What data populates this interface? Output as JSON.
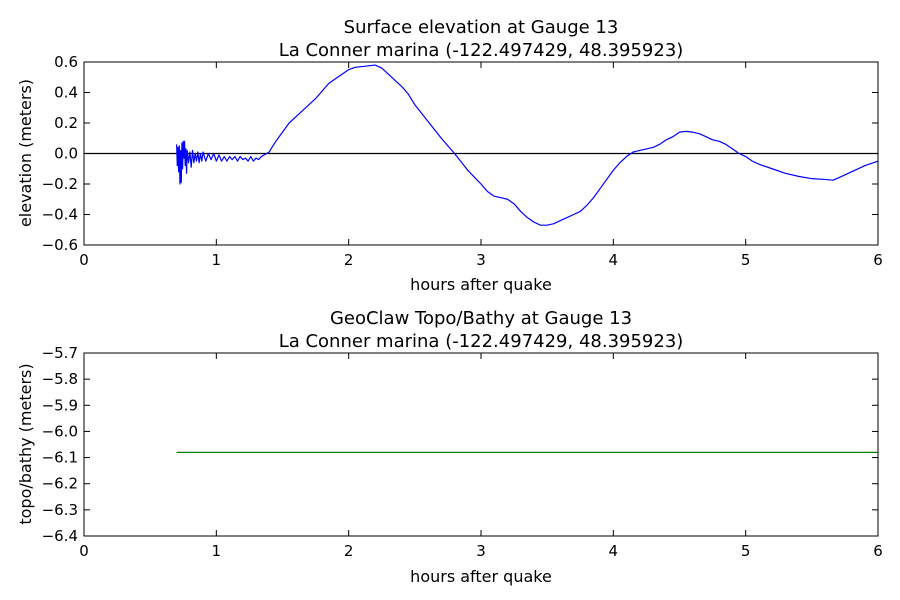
{
  "chart_data": [
    {
      "type": "line",
      "title_line1": "Surface elevation at Gauge 13",
      "title_line2": "La Conner marina  (-122.497429, 48.395923)",
      "xlabel": "hours after quake",
      "ylabel": "elevation (meters)",
      "xlim": [
        0,
        6
      ],
      "ylim": [
        -0.6,
        0.6
      ],
      "xticks": [
        "0",
        "1",
        "2",
        "3",
        "4",
        "5",
        "6"
      ],
      "yticks": [
        "0.6",
        "0.4",
        "0.2",
        "0.0",
        "−0.2",
        "−0.4",
        "−0.6"
      ],
      "reference_line": {
        "y": 0.0,
        "color": "#000000"
      },
      "series": [
        {
          "color": "#0000ff",
          "points": [
            [
              0.7,
              0.06
            ],
            [
              0.705,
              -0.08
            ],
            [
              0.71,
              0.04
            ],
            [
              0.715,
              -0.12
            ],
            [
              0.72,
              0.05
            ],
            [
              0.725,
              -0.2
            ],
            [
              0.73,
              0.02
            ],
            [
              0.735,
              -0.19
            ],
            [
              0.74,
              0.07
            ],
            [
              0.745,
              -0.1
            ],
            [
              0.75,
              0.08
            ],
            [
              0.755,
              -0.03
            ],
            [
              0.76,
              0.08
            ],
            [
              0.765,
              -0.08
            ],
            [
              0.77,
              0.03
            ],
            [
              0.775,
              -0.13
            ],
            [
              0.78,
              0.02
            ],
            [
              0.79,
              -0.06
            ],
            [
              0.8,
              0.01
            ],
            [
              0.81,
              -0.09
            ],
            [
              0.82,
              0.02
            ],
            [
              0.83,
              -0.06
            ],
            [
              0.84,
              0.0
            ],
            [
              0.85,
              -0.05
            ],
            [
              0.86,
              0.01
            ],
            [
              0.87,
              -0.06
            ],
            [
              0.88,
              0.0
            ],
            [
              0.89,
              -0.05
            ],
            [
              0.9,
              0.01
            ],
            [
              0.92,
              -0.05
            ],
            [
              0.94,
              0.0
            ],
            [
              0.96,
              -0.04
            ],
            [
              0.98,
              0.0
            ],
            [
              1.0,
              -0.05
            ],
            [
              1.02,
              -0.01
            ],
            [
              1.04,
              -0.05
            ],
            [
              1.06,
              -0.02
            ],
            [
              1.08,
              -0.05
            ],
            [
              1.1,
              -0.02
            ],
            [
              1.12,
              -0.04
            ],
            [
              1.14,
              -0.02
            ],
            [
              1.16,
              -0.05
            ],
            [
              1.18,
              -0.02
            ],
            [
              1.2,
              -0.04
            ],
            [
              1.22,
              -0.03
            ],
            [
              1.24,
              -0.05
            ],
            [
              1.26,
              -0.02
            ],
            [
              1.28,
              -0.05
            ],
            [
              1.3,
              -0.03
            ],
            [
              1.32,
              -0.04
            ],
            [
              1.34,
              -0.02
            ],
            [
              1.36,
              -0.01
            ],
            [
              1.38,
              0.0
            ],
            [
              1.4,
              0.01
            ],
            [
              1.42,
              0.04
            ],
            [
              1.45,
              0.08
            ],
            [
              1.5,
              0.14
            ],
            [
              1.55,
              0.2
            ],
            [
              1.6,
              0.24
            ],
            [
              1.65,
              0.28
            ],
            [
              1.7,
              0.32
            ],
            [
              1.75,
              0.36
            ],
            [
              1.8,
              0.41
            ],
            [
              1.85,
              0.46
            ],
            [
              1.9,
              0.49
            ],
            [
              1.95,
              0.52
            ],
            [
              2.0,
              0.55
            ],
            [
              2.05,
              0.565
            ],
            [
              2.1,
              0.57
            ],
            [
              2.15,
              0.575
            ],
            [
              2.2,
              0.58
            ],
            [
              2.25,
              0.56
            ],
            [
              2.3,
              0.52
            ],
            [
              2.35,
              0.48
            ],
            [
              2.4,
              0.44
            ],
            [
              2.45,
              0.39
            ],
            [
              2.5,
              0.32
            ],
            [
              2.6,
              0.21
            ],
            [
              2.7,
              0.1
            ],
            [
              2.8,
              0.0
            ],
            [
              2.9,
              -0.11
            ],
            [
              3.0,
              -0.2
            ],
            [
              3.05,
              -0.25
            ],
            [
              3.1,
              -0.28
            ],
            [
              3.15,
              -0.29
            ],
            [
              3.2,
              -0.3
            ],
            [
              3.25,
              -0.33
            ],
            [
              3.3,
              -0.38
            ],
            [
              3.35,
              -0.42
            ],
            [
              3.4,
              -0.45
            ],
            [
              3.45,
              -0.47
            ],
            [
              3.5,
              -0.47
            ],
            [
              3.55,
              -0.46
            ],
            [
              3.6,
              -0.44
            ],
            [
              3.65,
              -0.42
            ],
            [
              3.7,
              -0.4
            ],
            [
              3.75,
              -0.38
            ],
            [
              3.8,
              -0.34
            ],
            [
              3.85,
              -0.29
            ],
            [
              3.9,
              -0.23
            ],
            [
              3.95,
              -0.17
            ],
            [
              4.0,
              -0.11
            ],
            [
              4.05,
              -0.06
            ],
            [
              4.1,
              -0.02
            ],
            [
              4.15,
              0.01
            ],
            [
              4.2,
              0.02
            ],
            [
              4.25,
              0.03
            ],
            [
              4.3,
              0.04
            ],
            [
              4.35,
              0.06
            ],
            [
              4.4,
              0.09
            ],
            [
              4.45,
              0.11
            ],
            [
              4.5,
              0.14
            ],
            [
              4.55,
              0.145
            ],
            [
              4.6,
              0.14
            ],
            [
              4.65,
              0.13
            ],
            [
              4.7,
              0.11
            ],
            [
              4.75,
              0.09
            ],
            [
              4.8,
              0.08
            ],
            [
              4.85,
              0.06
            ],
            [
              4.9,
              0.03
            ],
            [
              4.95,
              0.0
            ],
            [
              5.0,
              -0.02
            ],
            [
              5.05,
              -0.05
            ],
            [
              5.1,
              -0.07
            ],
            [
              5.2,
              -0.1
            ],
            [
              5.3,
              -0.13
            ],
            [
              5.4,
              -0.15
            ],
            [
              5.5,
              -0.165
            ],
            [
              5.6,
              -0.17
            ],
            [
              5.66,
              -0.175
            ],
            [
              5.7,
              -0.16
            ],
            [
              5.8,
              -0.12
            ],
            [
              5.9,
              -0.08
            ],
            [
              6.0,
              -0.05
            ]
          ]
        }
      ]
    },
    {
      "type": "line",
      "title_line1": "GeoClaw Topo/Bathy at Gauge 13",
      "title_line2": "La Conner marina  (-122.497429, 48.395923)",
      "xlabel": "hours after quake",
      "ylabel": "topo/bathy (meters)",
      "xlim": [
        0,
        6
      ],
      "ylim": [
        -6.4,
        -5.7
      ],
      "xticks": [
        "0",
        "1",
        "2",
        "3",
        "4",
        "5",
        "6"
      ],
      "yticks": [
        "−5.7",
        "−5.8",
        "−5.9",
        "−6.0",
        "−6.1",
        "−6.2",
        "−6.3",
        "−6.4"
      ],
      "series": [
        {
          "color": "#008000",
          "points": [
            [
              0.7,
              -6.08
            ],
            [
              6.0,
              -6.08
            ]
          ]
        }
      ]
    }
  ]
}
